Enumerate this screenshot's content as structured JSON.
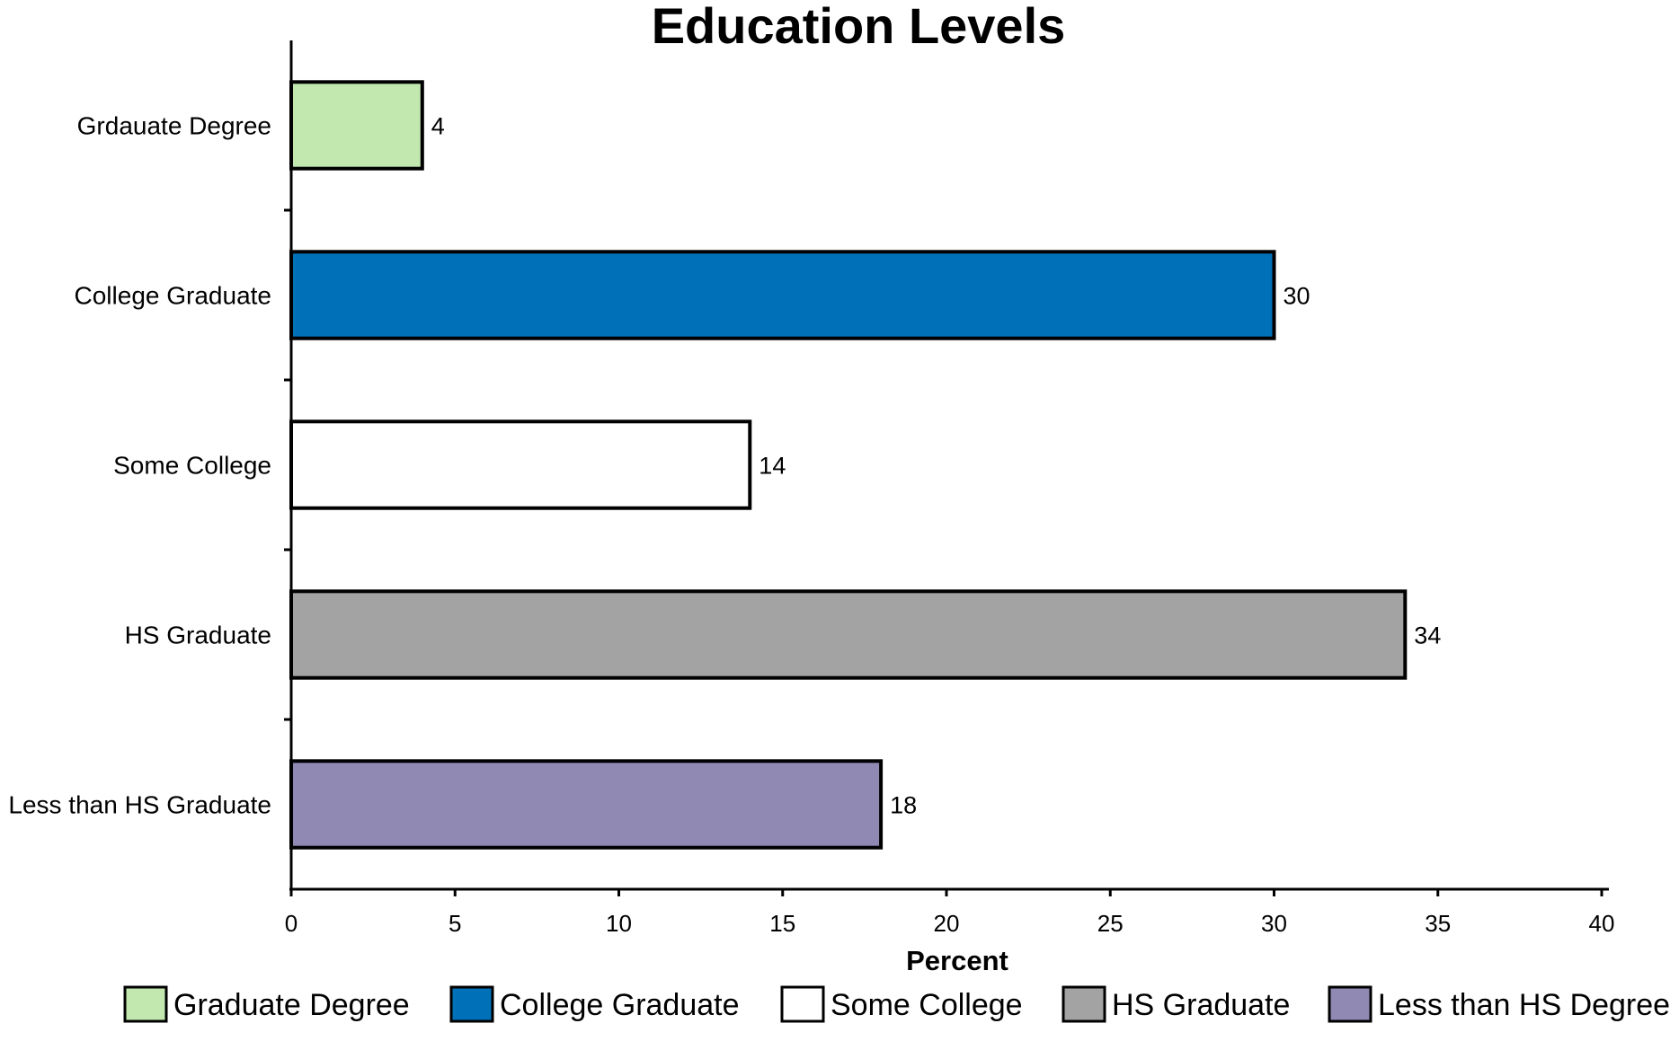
{
  "chart_data": {
    "type": "bar",
    "orientation": "horizontal",
    "title": "Education Levels",
    "xlabel": "Percent",
    "ylabel": "",
    "xlim": [
      0,
      40
    ],
    "x_ticks": [
      "0",
      "5",
      "10",
      "15",
      "20",
      "25",
      "30",
      "35",
      "40"
    ],
    "grid": false,
    "legend_position": "bottom",
    "categories": [
      "Grdauate Degree",
      "College Graduate",
      "Some College",
      "HS Graduate",
      "Less than HS Graduate"
    ],
    "values": [
      4,
      30,
      14,
      34,
      18
    ],
    "data_labels": [
      "4",
      "30",
      "14",
      "34",
      "18"
    ],
    "colors": [
      "#c2e8b0",
      "#0071b8",
      "#ffffff",
      "#a3a3a3",
      "#8f89b3"
    ],
    "legend": [
      {
        "label": "Graduate Degree",
        "color": "#c2e8b0"
      },
      {
        "label": "College Graduate",
        "color": "#0071b8"
      },
      {
        "label": "Some College",
        "color": "#ffffff"
      },
      {
        "label": "HS Graduate",
        "color": "#a3a3a3"
      },
      {
        "label": "Less than HS Degree",
        "color": "#8f89b3"
      }
    ]
  }
}
